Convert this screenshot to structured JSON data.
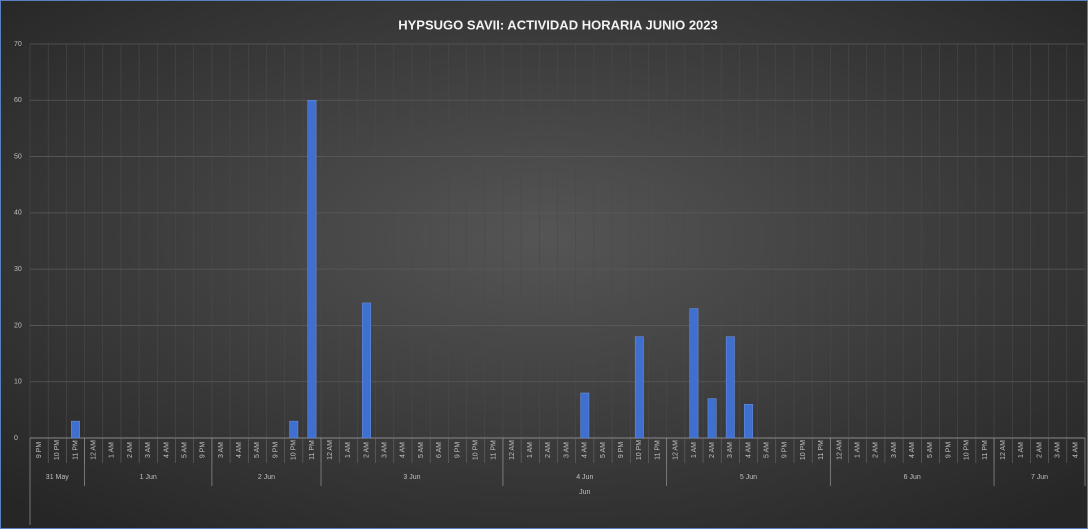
{
  "chart_data": {
    "type": "bar",
    "title": "HYPSUGO SAVII: ACTIVIDAD HORARIA JUNIO 2023",
    "groups": [
      {
        "name": "31 May",
        "categories": [
          "9 PM",
          "10 PM",
          "11 PM"
        ]
      },
      {
        "name": "1 Jun",
        "categories": [
          "12 AM",
          "1 AM",
          "2 AM",
          "3 AM",
          "4 AM",
          "5 AM",
          "9 PM"
        ]
      },
      {
        "name": "2 Jun",
        "categories": [
          "3 AM",
          "4 AM",
          "5 AM",
          "9 PM",
          "10 PM",
          "11 PM"
        ]
      },
      {
        "name": "3 Jun",
        "categories": [
          "12 AM",
          "1 AM",
          "2 AM",
          "3 AM",
          "4 AM",
          "5 AM",
          "6 AM",
          "9 PM",
          "10 PM",
          "11 PM"
        ]
      },
      {
        "name": "4 Jun",
        "month": "Jun",
        "categories": [
          "12 AM",
          "1 AM",
          "2 AM",
          "3 AM",
          "4 AM",
          "5 AM",
          "9 PM",
          "10 PM",
          "11 PM"
        ]
      },
      {
        "name": "5 Jun",
        "categories": [
          "12 AM",
          "1 AM",
          "2 AM",
          "3 AM",
          "4 AM",
          "5 AM",
          "9 PM",
          "10 PM",
          "11 PM"
        ]
      },
      {
        "name": "6 Jun",
        "categories": [
          "12 AM",
          "1 AM",
          "2 AM",
          "3 AM",
          "4 AM",
          "5 AM",
          "9 PM",
          "10 PM",
          "11 PM"
        ]
      },
      {
        "name": "7 Jun",
        "categories": [
          "12 AM",
          "1 AM",
          "2 AM",
          "3 AM",
          "4 AM"
        ]
      }
    ],
    "values": [
      0,
      0,
      3,
      0,
      0,
      0,
      0,
      0,
      0,
      0,
      0,
      0,
      0,
      0,
      3,
      60,
      0,
      0,
      24,
      0,
      0,
      0,
      0,
      0,
      0,
      0,
      0,
      0,
      0,
      0,
      8,
      0,
      0,
      18,
      0,
      0,
      23,
      7,
      18,
      6,
      0,
      0,
      0,
      0,
      0,
      0,
      0,
      0,
      0,
      0,
      0,
      0,
      0,
      0,
      0,
      0,
      0,
      0
    ],
    "color": "#3f6fcf",
    "ylim": [
      0,
      70
    ],
    "yticks": [
      0,
      10,
      20,
      30,
      40,
      50,
      60,
      70
    ],
    "grid": true
  }
}
